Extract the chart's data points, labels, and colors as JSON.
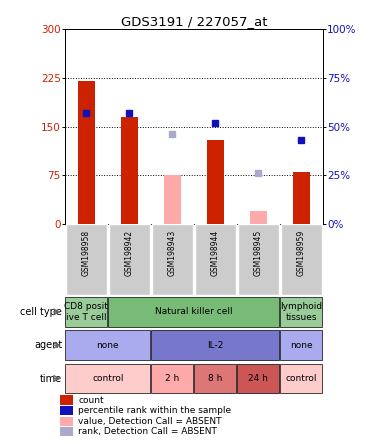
{
  "title": "GDS3191 / 227057_at",
  "samples": [
    "GSM198958",
    "GSM198942",
    "GSM198943",
    "GSM198944",
    "GSM198945",
    "GSM198959"
  ],
  "count_values": [
    220,
    165,
    0,
    130,
    0,
    80
  ],
  "count_absent": [
    false,
    false,
    true,
    false,
    true,
    false
  ],
  "value_absent": [
    0,
    0,
    75,
    0,
    20,
    0
  ],
  "rank_present": [
    57,
    57,
    0,
    52,
    0,
    43
  ],
  "rank_absent": [
    0,
    0,
    46,
    0,
    26,
    0
  ],
  "ylim_left": [
    0,
    300
  ],
  "ylim_right": [
    0,
    100
  ],
  "yticks_left": [
    0,
    75,
    150,
    225,
    300
  ],
  "yticks_right": [
    0,
    25,
    50,
    75,
    100
  ],
  "ytick_labels_left": [
    "0",
    "75",
    "150",
    "225",
    "300"
  ],
  "ytick_labels_right": [
    "0%",
    "25%",
    "50%",
    "75%",
    "100%"
  ],
  "color_count": "#cc2200",
  "color_rank": "#1111bb",
  "color_value_absent": "#ffaaaa",
  "color_rank_absent": "#aaaacc",
  "color_bar_bg": "#cccccc",
  "cell_type_groups": [
    {
      "label": "CD8 posit\nive T cell",
      "start": 0,
      "end": 1,
      "color": "#99cc99"
    },
    {
      "label": "Natural killer cell",
      "start": 1,
      "end": 5,
      "color": "#77bb77"
    },
    {
      "label": "lymphoid\ntissues",
      "start": 5,
      "end": 6,
      "color": "#99cc99"
    }
  ],
  "agent_groups": [
    {
      "label": "none",
      "start": 0,
      "end": 2,
      "color": "#aaaaee"
    },
    {
      "label": "IL-2",
      "start": 2,
      "end": 5,
      "color": "#7777cc"
    },
    {
      "label": "none",
      "start": 5,
      "end": 6,
      "color": "#aaaaee"
    }
  ],
  "time_groups": [
    {
      "label": "control",
      "start": 0,
      "end": 2,
      "color": "#ffcccc"
    },
    {
      "label": "2 h",
      "start": 2,
      "end": 3,
      "color": "#ffaaaa"
    },
    {
      "label": "8 h",
      "start": 3,
      "end": 4,
      "color": "#dd7777"
    },
    {
      "label": "24 h",
      "start": 4,
      "end": 5,
      "color": "#cc5555"
    },
    {
      "label": "control",
      "start": 5,
      "end": 6,
      "color": "#ffcccc"
    }
  ],
  "row_labels": [
    "cell type",
    "agent",
    "time"
  ],
  "legend_items": [
    {
      "color": "#cc2200",
      "label": "count"
    },
    {
      "color": "#1111bb",
      "label": "percentile rank within the sample"
    },
    {
      "color": "#ffaaaa",
      "label": "value, Detection Call = ABSENT"
    },
    {
      "color": "#aaaacc",
      "label": "rank, Detection Call = ABSENT"
    }
  ]
}
